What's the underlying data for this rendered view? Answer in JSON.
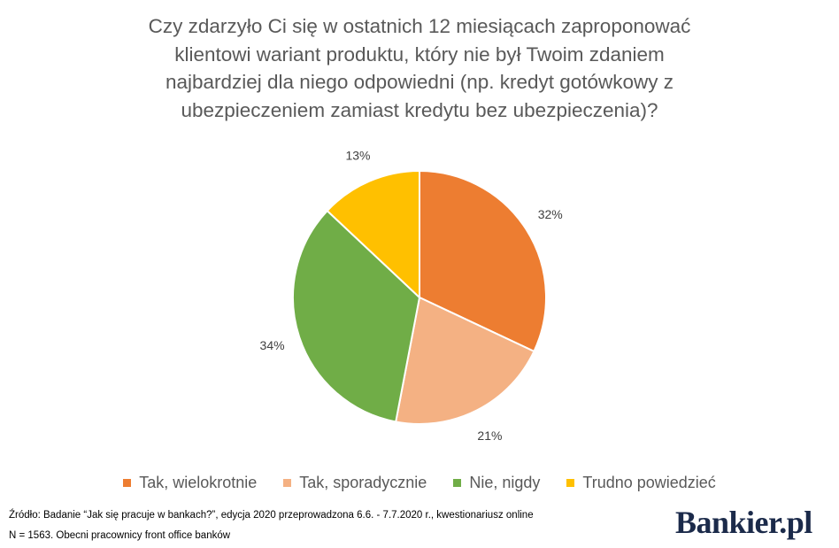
{
  "title_lines": [
    "Czy zdarzyło Ci się w ostatnich 12 miesiącach zaproponować",
    "klientowi wariant produktu, który nie był Twoim zdaniem",
    "najbardziej dla niego odpowiedni (np. kredyt gotówkowy z",
    "ubezpieczeniem  zamiast kredytu bez ubezpieczenia)?"
  ],
  "chart_data": {
    "type": "pie",
    "title": "Czy zdarzyło Ci się w ostatnich 12 miesiącach zaproponować klientowi wariant produktu, który nie był Twoim zdaniem najbardziej dla niego odpowiedni (np. kredyt gotówkowy z ubezpieczeniem  zamiast kredytu bez ubezpieczenia)?",
    "categories": [
      "Tak, wielokrotnie",
      "Tak, sporadycznie",
      "Nie, nigdy",
      "Trudno powiedzieć"
    ],
    "values": [
      32,
      21,
      34,
      13
    ],
    "labels": [
      "32%",
      "21%",
      "34%",
      "13%"
    ],
    "colors": [
      "#ED7D31",
      "#F4B183",
      "#70AD47",
      "#FFC000"
    ],
    "legend_position": "bottom",
    "start": "top, clockwise"
  },
  "legend": [
    {
      "label": "Tak, wielokrotnie",
      "color": "#ED7D31"
    },
    {
      "label": "Tak, sporadycznie",
      "color": "#F4B183"
    },
    {
      "label": "Nie, nigdy",
      "color": "#70AD47"
    },
    {
      "label": "Trudno powiedzieć",
      "color": "#FFC000"
    }
  ],
  "source": "Źródło: Badanie “Jak się pracuje w bankach?”, edycja 2020 przeprowadzona 6.6. - 7.7.2020 r., kwestionariusz online",
  "note": "N = 1563. Obecni pracownicy front office banków",
  "logo": {
    "text": "Bankier.pl",
    "color": "#1b2a4a"
  }
}
